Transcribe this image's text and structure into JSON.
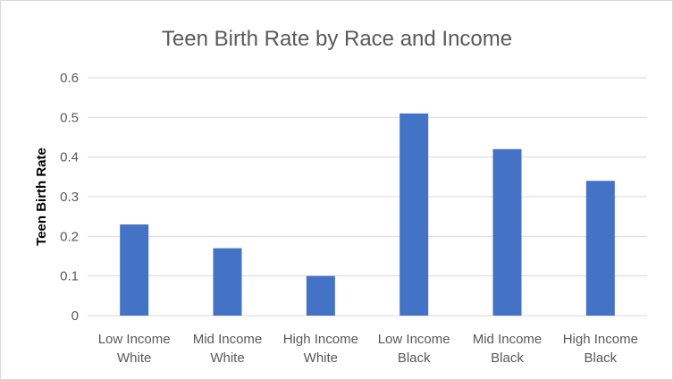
{
  "chart_data": {
    "type": "bar",
    "title": "Teen Birth Rate by Race and Income",
    "xlabel": "",
    "ylabel": "Teen Birth Rate",
    "ylim": [
      0,
      0.6
    ],
    "yticks": [
      "0",
      "0.1",
      "0.2",
      "0.3",
      "0.4",
      "0.5",
      "0.6"
    ],
    "categories": [
      [
        "Low Income",
        "White"
      ],
      [
        "Mid Income",
        "White"
      ],
      [
        "High Income",
        "White"
      ],
      [
        "Low Income",
        "Black"
      ],
      [
        "Mid Income",
        "Black"
      ],
      [
        "High Income",
        "Black"
      ]
    ],
    "values": [
      0.23,
      0.17,
      0.1,
      0.51,
      0.42,
      0.34
    ],
    "bar_color": "#4472c4",
    "grid": true,
    "legend": "none"
  }
}
